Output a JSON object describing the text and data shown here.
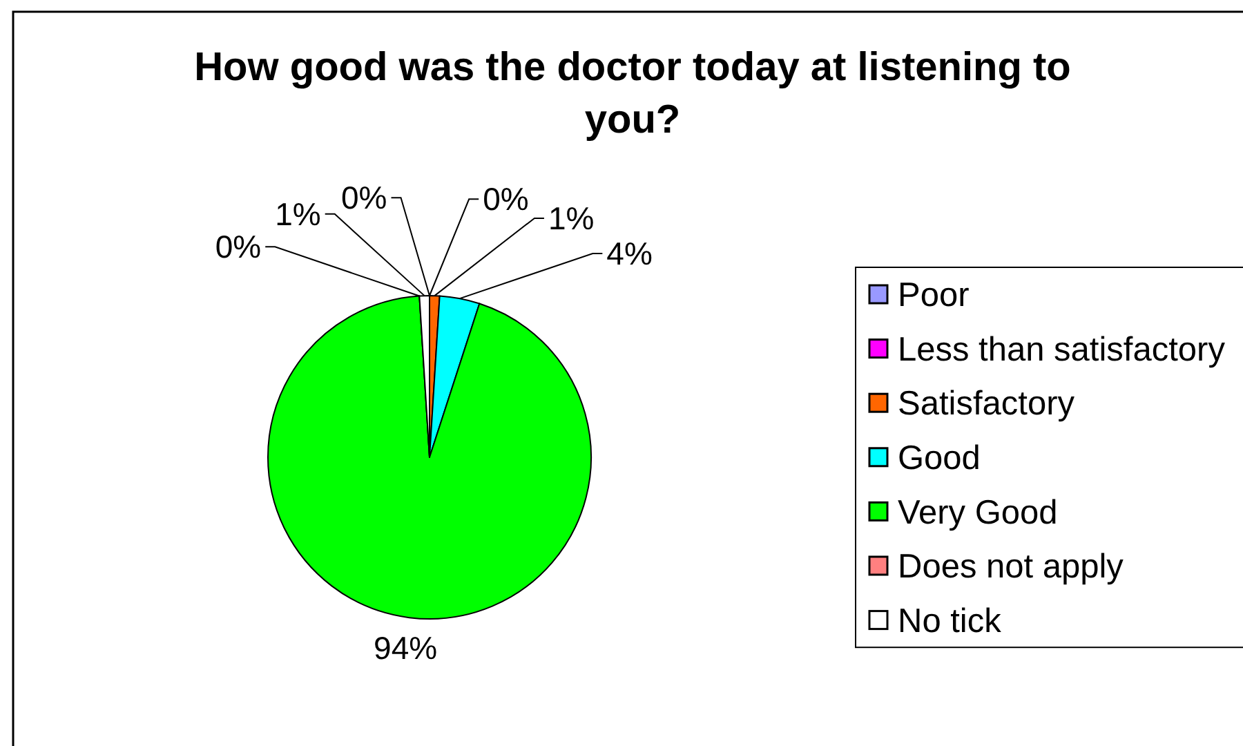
{
  "chart_data": {
    "type": "pie",
    "title": "How good was the doctor today at listening to you?",
    "categories": [
      "Poor",
      "Less than satisfactory",
      "Satisfactory",
      "Good",
      "Very Good",
      "Does not apply",
      "No tick"
    ],
    "values": [
      0,
      0,
      1,
      4,
      94,
      0,
      1
    ],
    "colors": [
      "#9999ff",
      "#ff00ff",
      "#ff6600",
      "#00ffff",
      "#00ff00",
      "#ff8080",
      "#ffffff"
    ],
    "value_labels": [
      "0%",
      "0%",
      "1%",
      "4%",
      "94%",
      "0%",
      "1%"
    ],
    "legend": "right"
  }
}
